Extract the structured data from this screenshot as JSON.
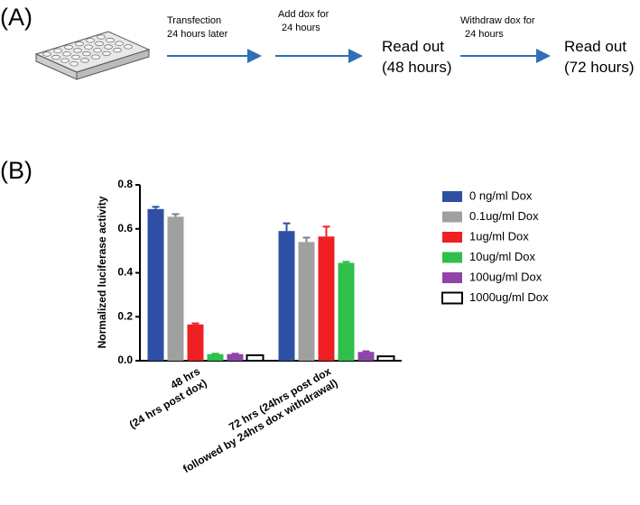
{
  "panel_a": {
    "label": "(A)",
    "arrow_labels": [
      [
        "Transfection",
        "24 hours later"
      ],
      [
        "Add dox for",
        "24 hours"
      ],
      [
        "Withdraw dox for",
        "24 hours"
      ]
    ],
    "readouts": [
      [
        "Read out",
        "(48 hours)"
      ],
      [
        "Read out",
        "(72 hours)"
      ]
    ]
  },
  "panel_b": {
    "label": "(B)"
  },
  "chart_data": {
    "type": "bar",
    "ylabel": "Normalized luciferase activity",
    "categories": [
      "48 hrs\n(24 hrs post dox)",
      "72 hrs (24hrs post dox\nfollowed by 24hrs dox withdrawal)"
    ],
    "series": [
      {
        "name": "0 ng/ml Dox",
        "color": "#2e4fa3",
        "values": [
          0.69,
          0.59
        ],
        "errors": [
          0.01,
          0.035
        ]
      },
      {
        "name": "0.1ug/ml Dox",
        "color": "#a0a0a0",
        "values": [
          0.655,
          0.54
        ],
        "errors": [
          0.012,
          0.02
        ]
      },
      {
        "name": "1ug/ml Dox",
        "color": "#ee2024",
        "values": [
          0.165,
          0.565
        ],
        "errors": [
          0.005,
          0.045
        ]
      },
      {
        "name": "10ug/ml Dox",
        "color": "#2fbf4a",
        "values": [
          0.03,
          0.445
        ],
        "errors": [
          0.002,
          0.005
        ]
      },
      {
        "name": "100ug/ml Dox",
        "color": "#8e44a8",
        "values": [
          0.03,
          0.04
        ],
        "errors": [
          0.002,
          0.003
        ]
      },
      {
        "name": "1000ug/ml Dox",
        "color": "#ffffff",
        "edgecolor": "#000000",
        "values": [
          0.025,
          0.02
        ],
        "errors": [
          0,
          0
        ]
      }
    ],
    "ylim": [
      0,
      0.8
    ],
    "yticks": [
      {
        "value": 0,
        "label": "0.0"
      },
      0.2,
      0.4,
      0.6,
      0.8
    ],
    "legend": "right"
  }
}
